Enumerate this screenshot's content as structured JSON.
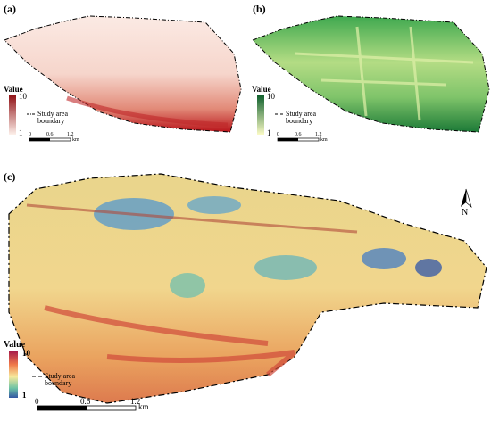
{
  "panels": [
    {
      "label": "(a)",
      "legend": {
        "title": "Value",
        "max": 10,
        "min": 1
      },
      "boundary": "Study area boundary",
      "scale": [
        0,
        0.6,
        1.2
      ],
      "unit": "km"
    },
    {
      "label": "(b)",
      "legend": {
        "title": "Value",
        "max": 10,
        "min": 1
      },
      "boundary": "Study area boundary",
      "scale": [
        0,
        0.6,
        1.2
      ],
      "unit": "km"
    },
    {
      "label": "(c)",
      "legend": {
        "title": "Value",
        "max": 10,
        "min": 1
      },
      "boundary": "Study area boundary",
      "scale": [
        0,
        0.6,
        1.2
      ],
      "unit": "km"
    }
  ],
  "north": "N"
}
